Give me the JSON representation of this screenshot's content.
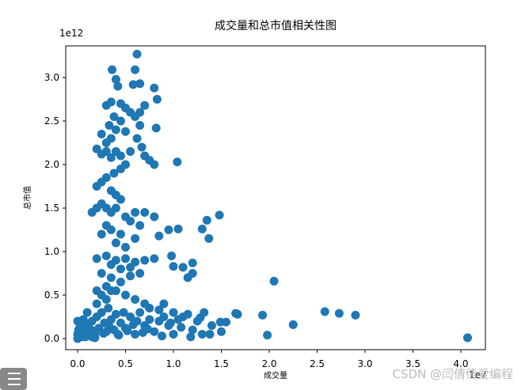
{
  "chart_data": {
    "type": "scatter",
    "title": "成交量和总市值相关性图",
    "x_label": "成交量",
    "y_label": "总市值",
    "x_offset_label": "1e7",
    "y_offset_label": "1e12",
    "watermark": "CSDN @闫倩倩爱编程",
    "color": "#1f77b4",
    "xlim": [
      -0.124,
      4.256
    ],
    "ylim": [
      -0.127,
      3.364
    ],
    "xticks": [
      {
        "value": 0,
        "label": "0.0"
      },
      {
        "value": 0.5,
        "label": "0.5"
      },
      {
        "value": 1,
        "label": "1.0"
      },
      {
        "value": 1.5,
        "label": "1.5"
      },
      {
        "value": 2,
        "label": "2.0"
      },
      {
        "value": 2.5,
        "label": "2.5"
      },
      {
        "value": 3,
        "label": "3.0"
      },
      {
        "value": 3.5,
        "label": "3.5"
      },
      {
        "value": 4,
        "label": "4.0"
      }
    ],
    "yticks": [
      {
        "value": 0,
        "label": "0.0"
      },
      {
        "value": 0.5,
        "label": "0.5"
      },
      {
        "value": 1,
        "label": "1.0"
      },
      {
        "value": 1.5,
        "label": "1.5"
      },
      {
        "value": 2,
        "label": "2.0"
      },
      {
        "value": 2.5,
        "label": "2.5"
      },
      {
        "value": 3,
        "label": "3.0"
      }
    ],
    "x": [
      4.07,
      2.9,
      2.73,
      2.58,
      2.25,
      2.05,
      1.98,
      1.93,
      1.67,
      1.65,
      1.55,
      1.5,
      1.49,
      1.48,
      1.35,
      1.37,
      1.3,
      1.05,
      1.04,
      0.98,
      1.0,
      1.1,
      1.2,
      1.15,
      1.2,
      1.32,
      1.3,
      1.38,
      1.25,
      1.1,
      1.0,
      0.9,
      0.85,
      0.95,
      0.8,
      0.7,
      0.62,
      0.36,
      0.6,
      0.65,
      0.4,
      0.42,
      0.58,
      0.8,
      0.83,
      0.3,
      0.35,
      0.45,
      0.5,
      0.55,
      0.7,
      0.65,
      0.38,
      0.45,
      0.33,
      0.6,
      0.65,
      0.82,
      0.4,
      0.5,
      0.35,
      0.25,
      0.3,
      0.62,
      0.67,
      0.2,
      0.25,
      0.3,
      0.35,
      0.4,
      0.45,
      0.5,
      0.55,
      0.7,
      0.75,
      0.8,
      0.45,
      0.38,
      0.2,
      0.25,
      0.3,
      0.35,
      0.4,
      0.45,
      0.2,
      0.15,
      0.25,
      0.3,
      0.35,
      0.4,
      0.5,
      0.55,
      0.6,
      0.65,
      0.3,
      0.35,
      0.45,
      0.25,
      0.4,
      0.5,
      0.6,
      0.2,
      0.3,
      0.4,
      0.5,
      0.6,
      0.7,
      0.8,
      0.35,
      0.45,
      0.55,
      0.25,
      0.35,
      0.45,
      0.55,
      0.65,
      0.3,
      0.2,
      0.4,
      0.5,
      0.6,
      0.7,
      0.75,
      0.85,
      0.0,
      0.02,
      0.05,
      0.08,
      0.1,
      0.12,
      0.15,
      0.18,
      0.2,
      0.22,
      0.25,
      0.28,
      0.3,
      0.32,
      0.35,
      0.38,
      0.4,
      0.42,
      0.45,
      0.48,
      0.5,
      0.55,
      0.6,
      0.62,
      0.65,
      0.7,
      0.75,
      0.8,
      0.85,
      0.9,
      0.95,
      1.0,
      1.05,
      1.15,
      1.2,
      0.0,
      0.03,
      0.06,
      0.01,
      0.04,
      0.1,
      0.15,
      0.2,
      0.25,
      0.3,
      0.35,
      0.0,
      0.02,
      0.07,
      0.14,
      0.18,
      0.27,
      0.33,
      0.43,
      0.52,
      0.58,
      0.68,
      0.73,
      0.88,
      0.97,
      1.08,
      1.18,
      1.28,
      1.4
    ],
    "values": [
      0.01,
      0.27,
      0.29,
      0.31,
      0.16,
      0.66,
      0.04,
      0.27,
      0.28,
      0.29,
      0.19,
      0.08,
      0.19,
      1.42,
      1.36,
      1.15,
      1.26,
      1.26,
      2.03,
      0.95,
      0.83,
      0.82,
      0.87,
      0.7,
      0.75,
      0.3,
      0.05,
      0.05,
      0.2,
      0.25,
      0.3,
      0.4,
      1.18,
      1.25,
      1.4,
      1.45,
      3.27,
      3.09,
      3.09,
      2.93,
      2.98,
      2.9,
      2.92,
      2.88,
      2.75,
      2.68,
      2.72,
      2.7,
      2.65,
      2.6,
      2.68,
      2.6,
      2.55,
      2.5,
      2.45,
      2.55,
      2.45,
      2.42,
      2.4,
      2.38,
      2.3,
      2.35,
      2.25,
      2.3,
      2.2,
      2.18,
      2.12,
      2.15,
      2.08,
      2.15,
      2.1,
      2.0,
      2.15,
      2.1,
      2.05,
      2.0,
      1.95,
      1.9,
      1.75,
      1.8,
      1.85,
      1.7,
      1.65,
      1.6,
      1.5,
      1.45,
      1.55,
      1.5,
      1.45,
      1.5,
      1.4,
      1.35,
      1.45,
      1.3,
      1.3,
      1.25,
      1.2,
      1.2,
      1.1,
      1.05,
      1.15,
      0.92,
      0.95,
      0.9,
      0.92,
      0.88,
      0.9,
      0.92,
      0.85,
      0.8,
      0.82,
      0.75,
      0.7,
      0.65,
      0.72,
      0.75,
      0.6,
      0.55,
      0.55,
      0.5,
      0.45,
      0.4,
      0.35,
      0.33,
      0.0,
      0.05,
      0.1,
      0.02,
      0.15,
      0.08,
      0.2,
      0.05,
      0.25,
      0.12,
      0.3,
      0.18,
      0.08,
      0.35,
      0.22,
      0.1,
      0.28,
      0.05,
      0.18,
      0.3,
      0.12,
      0.25,
      0.05,
      0.2,
      0.3,
      0.15,
      0.22,
      0.08,
      0.2,
      0.25,
      0.15,
      0.05,
      0.22,
      0.28,
      0.1,
      0.2,
      0.15,
      0.22,
      0.1,
      0.02,
      0.3,
      0.02,
      0.4,
      0.5,
      0.45,
      0.55,
      0.05,
      0.12,
      0.03,
      0.1,
      0.01,
      0.06,
      0.14,
      0.04,
      0.09,
      0.16,
      0.07,
      0.11,
      0.03,
      0.18,
      0.13,
      0.02,
      0.24,
      0.15
    ]
  }
}
